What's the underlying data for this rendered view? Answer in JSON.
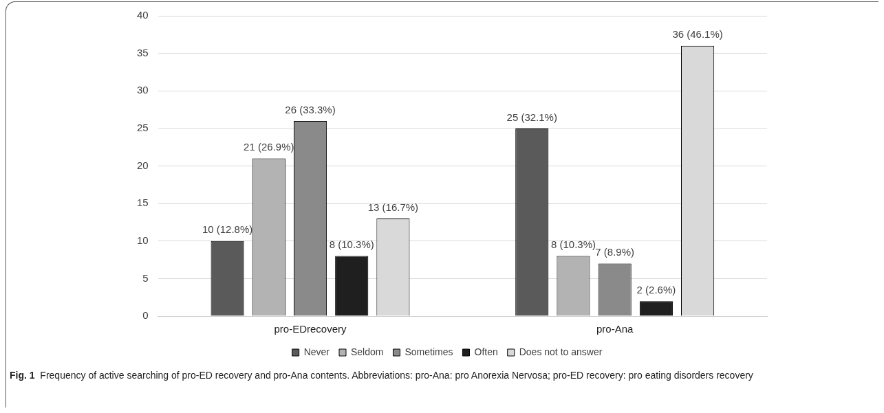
{
  "chart_data": {
    "type": "bar",
    "categories": [
      "pro-EDrecovery",
      "pro-Ana"
    ],
    "series": [
      {
        "name": "Never",
        "color": "#5a5a5a",
        "values": [
          10,
          25
        ],
        "value_labels": [
          "10 (12.8%)",
          "25 (32.1%)"
        ]
      },
      {
        "name": "Seldom",
        "color": "#b3b3b3",
        "values": [
          21,
          8
        ],
        "value_labels": [
          "21 (26.9%)",
          "8 (10.3%)"
        ]
      },
      {
        "name": "Sometimes",
        "color": "#8a8a8a",
        "values": [
          26,
          7
        ],
        "value_labels": [
          "26 (33.3%)",
          "7 (8.9%)"
        ]
      },
      {
        "name": "Often",
        "color": "#1f1f1f",
        "values": [
          8,
          2
        ],
        "value_labels": [
          "8 (10.3%)",
          "2 (2.6%)"
        ]
      },
      {
        "name": "Does not to answer",
        "color": "#d9d9d9",
        "values": [
          13,
          36
        ],
        "value_labels": [
          "13 (16.7%)",
          "36 (46.1%)"
        ]
      }
    ],
    "ylim": [
      0,
      40
    ],
    "yticks": [
      0,
      5,
      10,
      15,
      20,
      25,
      30,
      35,
      40
    ],
    "grid": "y",
    "legend": "bottom",
    "annotations": [
      "Fig. 1  Frequency of active searching of pro-ED recovery and pro-Ana contents. Abbreviations: pro-Ana: pro Anorexia Nervosa; pro-ED recovery: pro eating disorders recovery"
    ]
  }
}
